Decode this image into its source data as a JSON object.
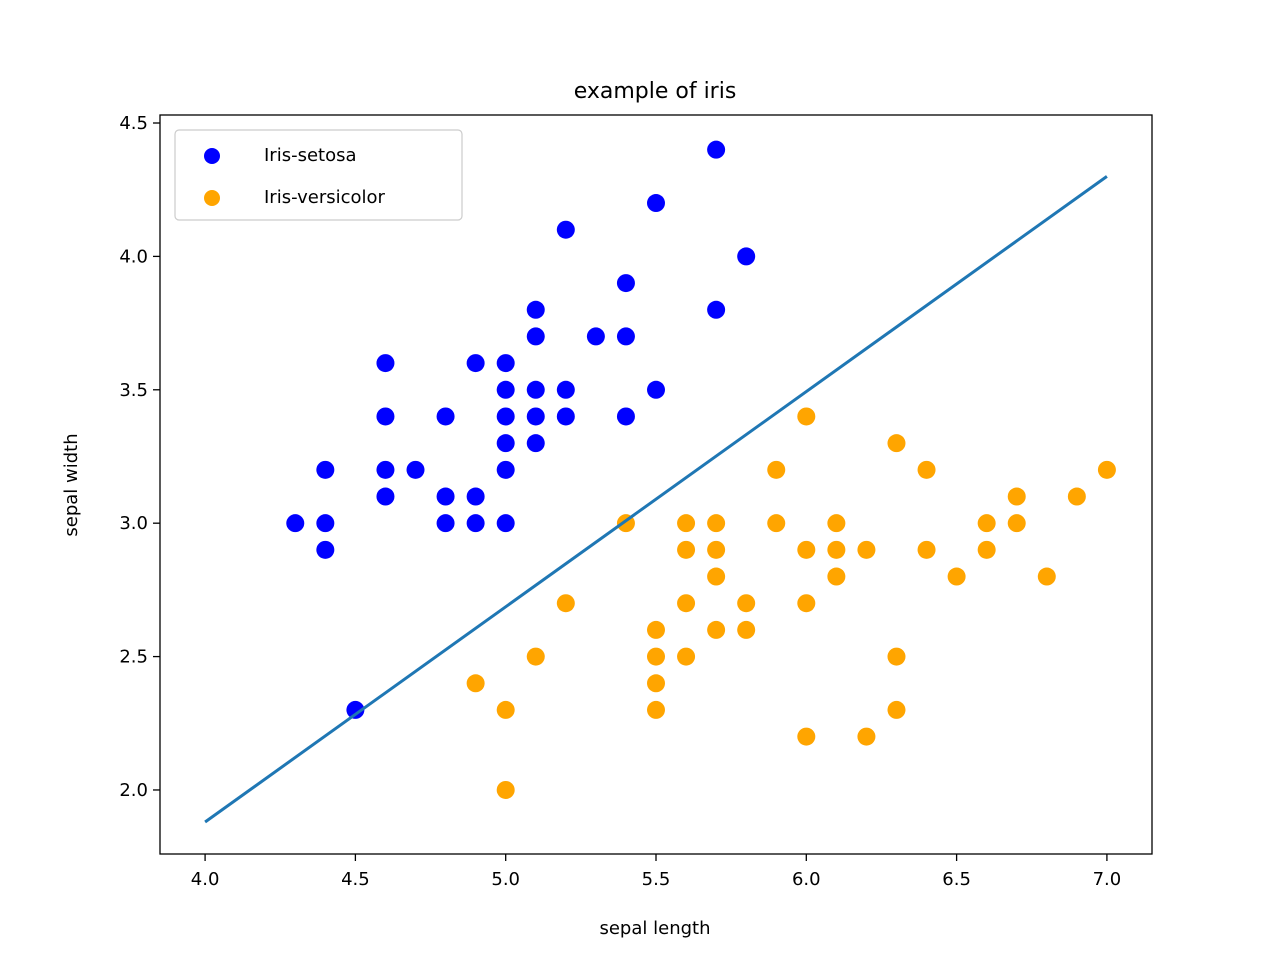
{
  "chart_data": {
    "type": "scatter",
    "title": "example of iris",
    "xlabel": "sepal length",
    "ylabel": "sepal width",
    "xlim": [
      3.85,
      7.15
    ],
    "ylim": [
      1.76,
      4.53
    ],
    "xticks": [
      "4.0",
      "4.5",
      "5.0",
      "5.5",
      "6.0",
      "6.5",
      "7.0"
    ],
    "yticks": [
      "2.0",
      "2.5",
      "3.0",
      "3.5",
      "4.0",
      "4.5"
    ],
    "legend_position": "top-left",
    "grid": false,
    "series": [
      {
        "name": "Iris-setosa",
        "color": "#0000ff",
        "points": [
          [
            4.3,
            3.0
          ],
          [
            4.4,
            3.2
          ],
          [
            4.4,
            3.0
          ],
          [
            4.4,
            2.9
          ],
          [
            4.5,
            2.3
          ],
          [
            4.6,
            3.6
          ],
          [
            4.6,
            3.4
          ],
          [
            4.6,
            3.2
          ],
          [
            4.6,
            3.1
          ],
          [
            4.7,
            3.2
          ],
          [
            4.8,
            3.4
          ],
          [
            4.8,
            3.1
          ],
          [
            4.8,
            3.0
          ],
          [
            4.9,
            3.6
          ],
          [
            4.9,
            3.1
          ],
          [
            4.9,
            3.0
          ],
          [
            5.0,
            3.6
          ],
          [
            5.0,
            3.5
          ],
          [
            5.0,
            3.4
          ],
          [
            5.0,
            3.3
          ],
          [
            5.0,
            3.2
          ],
          [
            5.0,
            3.0
          ],
          [
            5.1,
            3.8
          ],
          [
            5.1,
            3.7
          ],
          [
            5.1,
            3.5
          ],
          [
            5.1,
            3.4
          ],
          [
            5.1,
            3.3
          ],
          [
            5.2,
            4.1
          ],
          [
            5.2,
            3.5
          ],
          [
            5.2,
            3.4
          ],
          [
            5.3,
            3.7
          ],
          [
            5.4,
            3.9
          ],
          [
            5.4,
            3.7
          ],
          [
            5.4,
            3.4
          ],
          [
            5.5,
            4.2
          ],
          [
            5.5,
            3.5
          ],
          [
            5.7,
            4.4
          ],
          [
            5.7,
            3.8
          ],
          [
            5.8,
            4.0
          ]
        ]
      },
      {
        "name": "Iris-versicolor",
        "color": "#ffa500",
        "points": [
          [
            4.9,
            2.4
          ],
          [
            5.0,
            2.3
          ],
          [
            5.0,
            2.0
          ],
          [
            5.1,
            2.5
          ],
          [
            5.2,
            2.7
          ],
          [
            5.4,
            3.0
          ],
          [
            5.5,
            2.6
          ],
          [
            5.5,
            2.5
          ],
          [
            5.5,
            2.4
          ],
          [
            5.5,
            2.3
          ],
          [
            5.6,
            3.0
          ],
          [
            5.6,
            2.9
          ],
          [
            5.6,
            2.7
          ],
          [
            5.6,
            2.5
          ],
          [
            5.7,
            3.0
          ],
          [
            5.7,
            2.9
          ],
          [
            5.7,
            2.8
          ],
          [
            5.7,
            2.6
          ],
          [
            5.8,
            2.7
          ],
          [
            5.8,
            2.6
          ],
          [
            5.9,
            3.2
          ],
          [
            5.9,
            3.0
          ],
          [
            6.0,
            3.4
          ],
          [
            6.0,
            2.9
          ],
          [
            6.0,
            2.7
          ],
          [
            6.0,
            2.2
          ],
          [
            6.1,
            3.0
          ],
          [
            6.1,
            2.9
          ],
          [
            6.1,
            2.8
          ],
          [
            6.2,
            2.9
          ],
          [
            6.2,
            2.2
          ],
          [
            6.3,
            3.3
          ],
          [
            6.3,
            2.5
          ],
          [
            6.3,
            2.3
          ],
          [
            6.4,
            3.2
          ],
          [
            6.4,
            2.9
          ],
          [
            6.5,
            2.8
          ],
          [
            6.6,
            3.0
          ],
          [
            6.6,
            2.9
          ],
          [
            6.7,
            3.1
          ],
          [
            6.7,
            3.0
          ],
          [
            6.8,
            2.8
          ],
          [
            6.9,
            3.1
          ],
          [
            7.0,
            3.2
          ]
        ]
      }
    ],
    "line": {
      "color": "#1f77b4",
      "points": [
        [
          4.0,
          1.88
        ],
        [
          7.0,
          4.3
        ]
      ]
    }
  }
}
